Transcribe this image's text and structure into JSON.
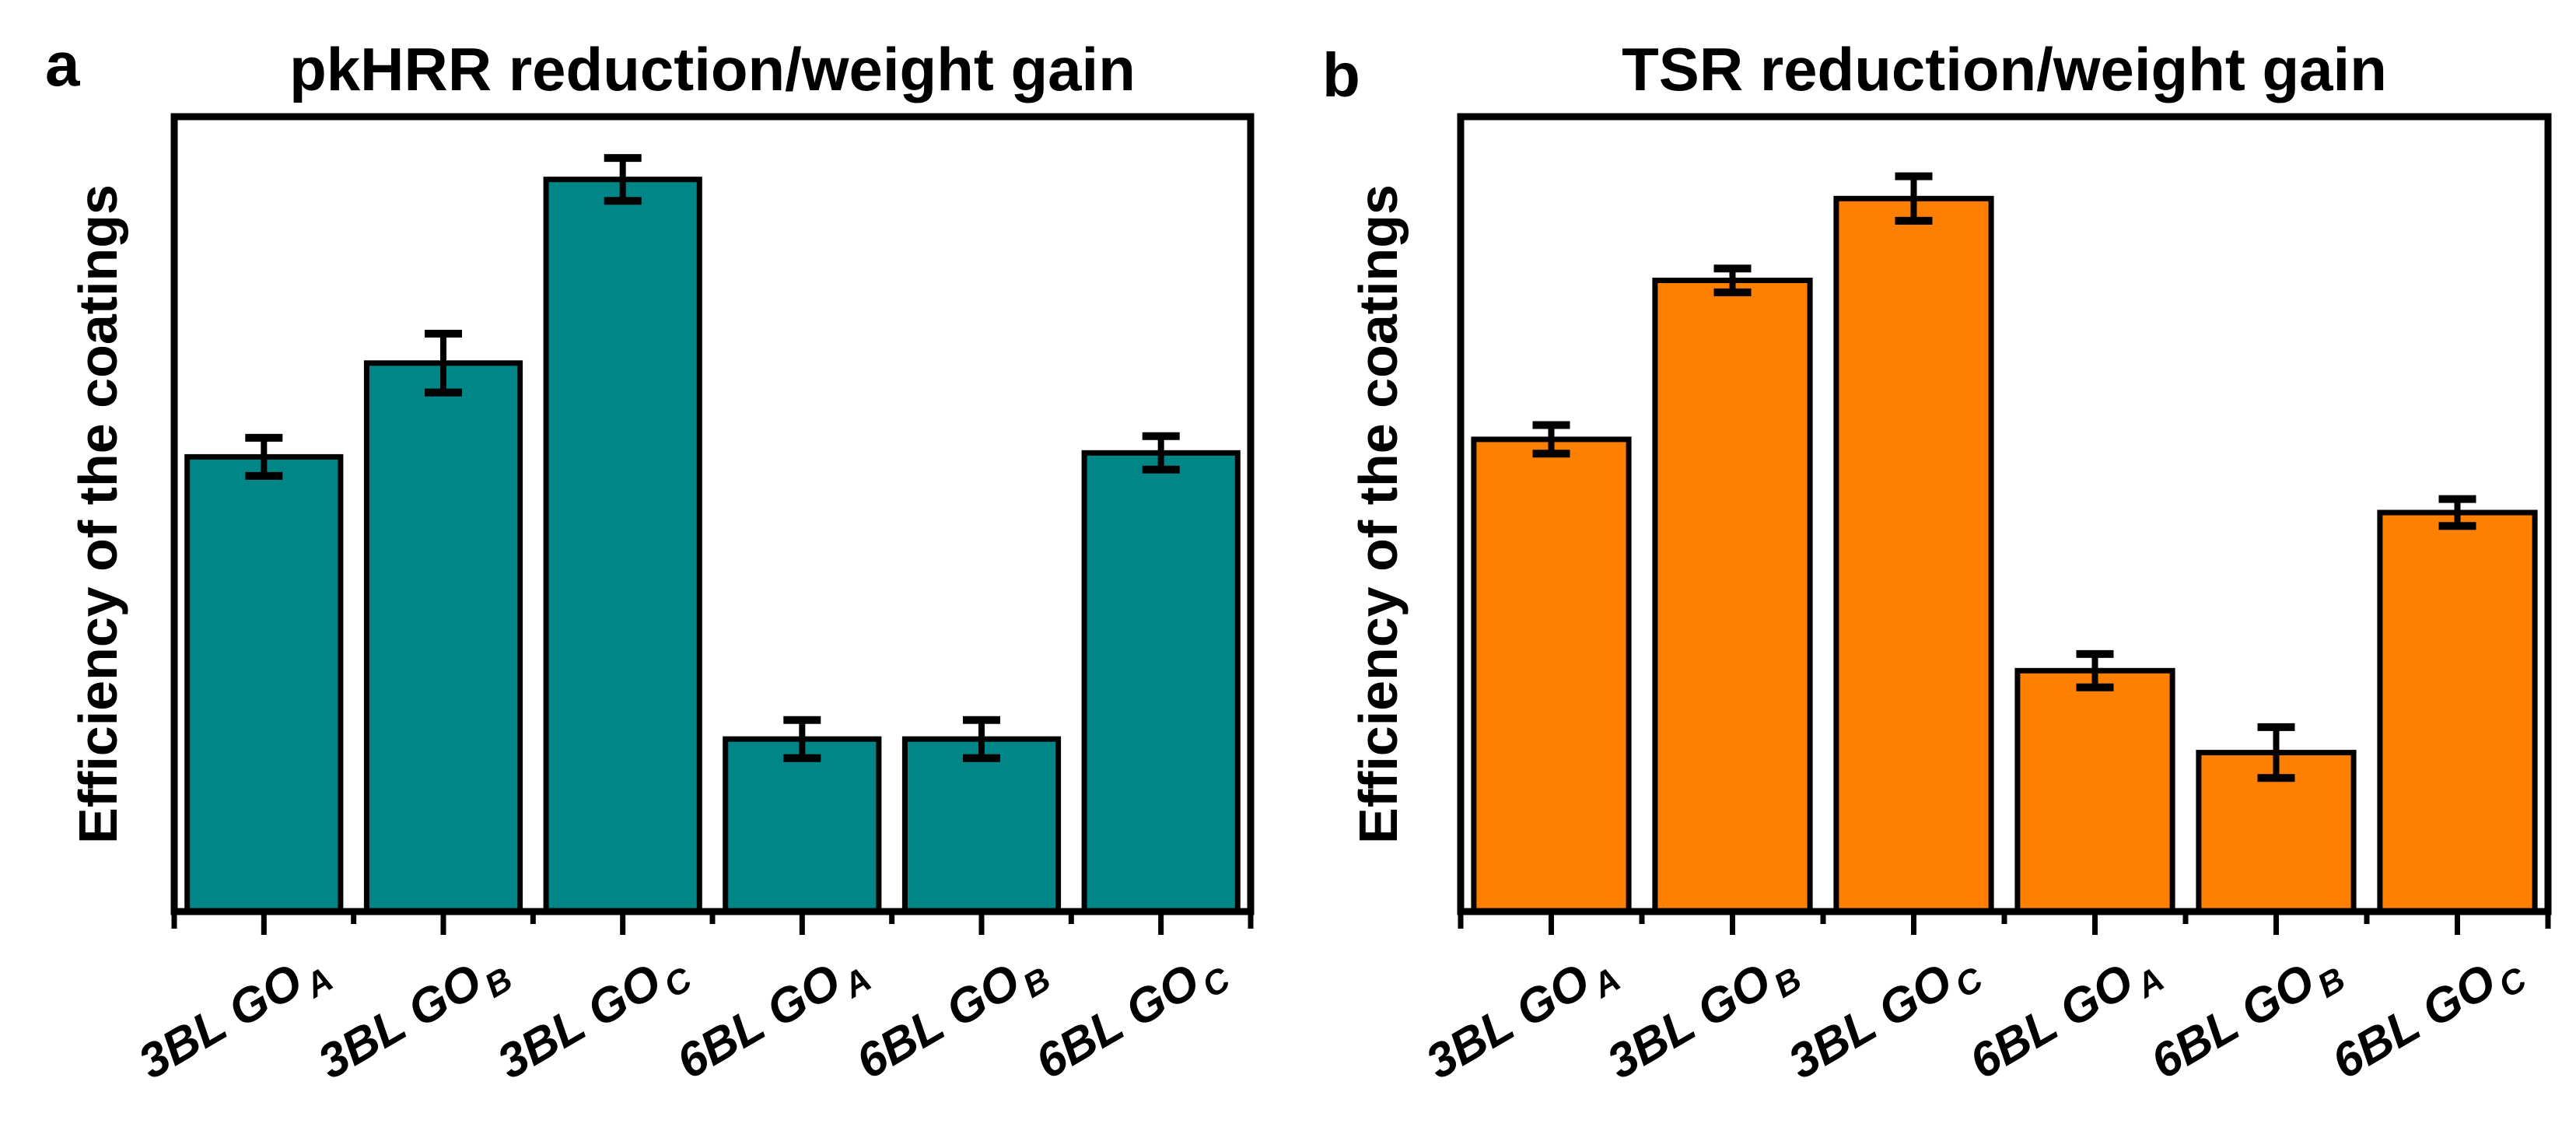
{
  "chart_data": [
    {
      "type": "bar",
      "panel_label": "a",
      "title": "pkHRR reduction/weight gain",
      "ylabel": "Efficiency of the coatings",
      "xlabel": "",
      "categories": [
        {
          "text": "3BL GO",
          "sub": "A"
        },
        {
          "text": "3BL GO",
          "sub": "B"
        },
        {
          "text": "3BL GO",
          "sub": "C"
        },
        {
          "text": "6BL GO",
          "sub": "A"
        },
        {
          "text": "6BL GO",
          "sub": "B"
        },
        {
          "text": "6BL GO",
          "sub": "C"
        }
      ],
      "values": [
        0.572,
        0.69,
        0.921,
        0.217,
        0.217,
        0.577
      ],
      "errors": [
        0.024,
        0.037,
        0.027,
        0.024,
        0.024,
        0.021
      ],
      "ylim": [
        0,
        1
      ],
      "value_scale": "fraction-of-axis-height (no numeric y-axis shown)",
      "y_tick_labels": "none",
      "x_tick_rotation_deg": -30,
      "grid": false,
      "legend": null,
      "error_bars": true,
      "bar_color": "#008686",
      "bar_edge_color": "#000000",
      "error_color": "#000000",
      "axis_color": "#000000",
      "text_color": "#000000"
    },
    {
      "type": "bar",
      "panel_label": "b",
      "title": "TSR reduction/weight gain",
      "ylabel": "Efficiency of the coatings",
      "xlabel": "",
      "categories": [
        {
          "text": "3BL GO",
          "sub": "A"
        },
        {
          "text": "3BL GO",
          "sub": "B"
        },
        {
          "text": "3BL GO",
          "sub": "C"
        },
        {
          "text": "6BL GO",
          "sub": "A"
        },
        {
          "text": "6BL GO",
          "sub": "B"
        },
        {
          "text": "6BL GO",
          "sub": "C"
        }
      ],
      "values": [
        0.594,
        0.794,
        0.897,
        0.303,
        0.2,
        0.502
      ],
      "errors": [
        0.018,
        0.015,
        0.028,
        0.021,
        0.032,
        0.017
      ],
      "ylim": [
        0,
        1
      ],
      "value_scale": "fraction-of-axis-height (no numeric y-axis shown)",
      "y_tick_labels": "none",
      "x_tick_rotation_deg": -30,
      "grid": false,
      "legend": null,
      "error_bars": true,
      "bar_color": "#FF8000",
      "bar_edge_color": "#000000",
      "error_color": "#000000",
      "axis_color": "#000000",
      "text_color": "#000000"
    }
  ]
}
